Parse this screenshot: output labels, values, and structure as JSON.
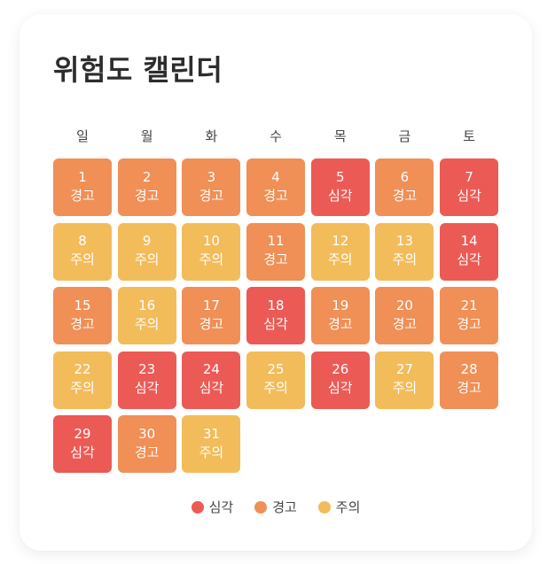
{
  "title": "위험도 캘린더",
  "colors": {
    "severe": "#EC5A55",
    "warning": "#F08F56",
    "caution": "#F3BC5A"
  },
  "weekdays": [
    "일",
    "월",
    "화",
    "수",
    "목",
    "금",
    "토"
  ],
  "levels": {
    "severe": "심각",
    "warning": "경고",
    "caution": "주의"
  },
  "days": [
    {
      "day": "1",
      "level": "warning",
      "label": "경고"
    },
    {
      "day": "2",
      "level": "warning",
      "label": "경고"
    },
    {
      "day": "3",
      "level": "warning",
      "label": "경고"
    },
    {
      "day": "4",
      "level": "warning",
      "label": "경고"
    },
    {
      "day": "5",
      "level": "severe",
      "label": "심각"
    },
    {
      "day": "6",
      "level": "warning",
      "label": "경고"
    },
    {
      "day": "7",
      "level": "severe",
      "label": "심각"
    },
    {
      "day": "8",
      "level": "caution",
      "label": "주의"
    },
    {
      "day": "9",
      "level": "caution",
      "label": "주의"
    },
    {
      "day": "10",
      "level": "caution",
      "label": "주의"
    },
    {
      "day": "11",
      "level": "warning",
      "label": "경고"
    },
    {
      "day": "12",
      "level": "caution",
      "label": "주의"
    },
    {
      "day": "13",
      "level": "caution",
      "label": "주의"
    },
    {
      "day": "14",
      "level": "severe",
      "label": "심각"
    },
    {
      "day": "15",
      "level": "warning",
      "label": "경고"
    },
    {
      "day": "16",
      "level": "caution",
      "label": "주의"
    },
    {
      "day": "17",
      "level": "warning",
      "label": "경고"
    },
    {
      "day": "18",
      "level": "severe",
      "label": "심각"
    },
    {
      "day": "19",
      "level": "warning",
      "label": "경고"
    },
    {
      "day": "20",
      "level": "warning",
      "label": "경고"
    },
    {
      "day": "21",
      "level": "warning",
      "label": "경고"
    },
    {
      "day": "22",
      "level": "caution",
      "label": "주의"
    },
    {
      "day": "23",
      "level": "severe",
      "label": "심각"
    },
    {
      "day": "24",
      "level": "severe",
      "label": "심각"
    },
    {
      "day": "25",
      "level": "caution",
      "label": "주의"
    },
    {
      "day": "26",
      "level": "severe",
      "label": "심각"
    },
    {
      "day": "27",
      "level": "caution",
      "label": "주의"
    },
    {
      "day": "28",
      "level": "warning",
      "label": "경고"
    },
    {
      "day": "29",
      "level": "severe",
      "label": "심각"
    },
    {
      "day": "30",
      "level": "warning",
      "label": "경고"
    },
    {
      "day": "31",
      "level": "caution",
      "label": "주의"
    }
  ],
  "legend": [
    {
      "level": "severe",
      "label": "심각"
    },
    {
      "level": "warning",
      "label": "경고"
    },
    {
      "level": "caution",
      "label": "주의"
    }
  ]
}
